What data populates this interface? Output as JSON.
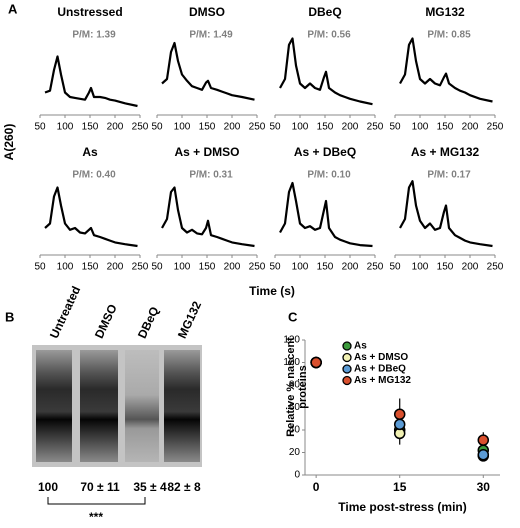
{
  "panel_labels": [
    "A",
    "B",
    "C"
  ],
  "shared_axes": {
    "ylabel": "A(260)",
    "xlabel": "Time (s)"
  },
  "gel": {
    "lanes": [
      "Untreated",
      "DMSO",
      "DBeQ",
      "MG132"
    ],
    "quantities": [
      "100",
      "70 ± 11",
      "35 ± 4",
      "82 ± 8"
    ],
    "significance": "***"
  },
  "chart_data": [
    {
      "type": "line",
      "title": "Unstressed",
      "annotation": "P/M: 1.39",
      "color": "#000000",
      "xlim": [
        50,
        250
      ],
      "xticks": [
        50,
        100,
        150,
        200,
        250
      ],
      "ylim": [
        0,
        1
      ],
      "x": [
        60,
        70,
        78,
        85,
        92,
        100,
        110,
        120,
        130,
        140,
        148,
        152,
        158,
        170,
        180,
        190,
        200,
        220,
        245
      ],
      "values": [
        0.25,
        0.27,
        0.5,
        0.65,
        0.45,
        0.25,
        0.2,
        0.19,
        0.18,
        0.17,
        0.25,
        0.3,
        0.2,
        0.2,
        0.19,
        0.17,
        0.16,
        0.13,
        0.1
      ]
    },
    {
      "type": "line",
      "title": "DMSO",
      "annotation": "P/M: 1.49",
      "color": "#000000",
      "xlim": [
        50,
        250
      ],
      "xticks": [
        50,
        100,
        150,
        200,
        250
      ],
      "ylim": [
        0,
        1
      ],
      "x": [
        60,
        70,
        78,
        85,
        92,
        100,
        110,
        120,
        130,
        140,
        148,
        152,
        158,
        170,
        180,
        190,
        200,
        220,
        245
      ],
      "values": [
        0.35,
        0.4,
        0.7,
        0.8,
        0.6,
        0.45,
        0.38,
        0.32,
        0.3,
        0.28,
        0.36,
        0.38,
        0.3,
        0.28,
        0.26,
        0.24,
        0.22,
        0.2,
        0.17
      ]
    },
    {
      "type": "line",
      "title": "DBeQ",
      "annotation": "P/M: 0.56",
      "color": "#000000",
      "xlim": [
        50,
        250
      ],
      "xticks": [
        50,
        100,
        150,
        200,
        250
      ],
      "ylim": [
        0,
        1
      ],
      "x": [
        60,
        70,
        78,
        85,
        92,
        100,
        110,
        120,
        130,
        140,
        148,
        152,
        158,
        170,
        180,
        190,
        200,
        220,
        245
      ],
      "values": [
        0.3,
        0.4,
        0.78,
        0.85,
        0.55,
        0.35,
        0.3,
        0.35,
        0.3,
        0.28,
        0.42,
        0.48,
        0.3,
        0.25,
        0.22,
        0.2,
        0.18,
        0.15,
        0.12
      ]
    },
    {
      "type": "line",
      "title": "MG132",
      "annotation": "P/M: 0.85",
      "color": "#000000",
      "xlim": [
        50,
        250
      ],
      "xticks": [
        50,
        100,
        150,
        200,
        250
      ],
      "ylim": [
        0,
        1
      ],
      "x": [
        60,
        70,
        78,
        85,
        92,
        100,
        110,
        120,
        130,
        140,
        148,
        152,
        158,
        170,
        180,
        190,
        200,
        220,
        245
      ],
      "values": [
        0.35,
        0.45,
        0.78,
        0.85,
        0.6,
        0.4,
        0.35,
        0.4,
        0.35,
        0.33,
        0.42,
        0.46,
        0.35,
        0.3,
        0.27,
        0.25,
        0.22,
        0.18,
        0.15
      ]
    },
    {
      "type": "line",
      "title": "As",
      "annotation": "P/M: 0.40",
      "color": "#000000",
      "xlim": [
        50,
        250
      ],
      "xticks": [
        50,
        100,
        150,
        200,
        250
      ],
      "ylim": [
        0,
        1
      ],
      "x": [
        60,
        70,
        78,
        85,
        92,
        100,
        110,
        120,
        130,
        140,
        148,
        152,
        158,
        170,
        180,
        190,
        200,
        220,
        245
      ],
      "values": [
        0.3,
        0.35,
        0.65,
        0.75,
        0.55,
        0.35,
        0.28,
        0.3,
        0.25,
        0.24,
        0.28,
        0.3,
        0.22,
        0.2,
        0.18,
        0.16,
        0.14,
        0.12,
        0.1
      ]
    },
    {
      "type": "line",
      "title": "As + DMSO",
      "annotation": "P/M: 0.31",
      "color": "#000000",
      "xlim": [
        50,
        250
      ],
      "xticks": [
        50,
        100,
        150,
        200,
        250
      ],
      "ylim": [
        0,
        1
      ],
      "x": [
        60,
        70,
        78,
        85,
        92,
        100,
        110,
        120,
        130,
        140,
        148,
        152,
        158,
        170,
        180,
        190,
        200,
        220,
        245
      ],
      "values": [
        0.3,
        0.4,
        0.7,
        0.75,
        0.5,
        0.3,
        0.25,
        0.28,
        0.24,
        0.23,
        0.3,
        0.38,
        0.22,
        0.2,
        0.18,
        0.16,
        0.14,
        0.12,
        0.1
      ]
    },
    {
      "type": "line",
      "title": "As + DBeQ",
      "annotation": "P/M: 0.10",
      "color": "#000000",
      "xlim": [
        50,
        250
      ],
      "xticks": [
        50,
        100,
        150,
        200,
        250
      ],
      "ylim": [
        0,
        1
      ],
      "x": [
        60,
        70,
        78,
        85,
        92,
        100,
        110,
        120,
        130,
        140,
        148,
        152,
        158,
        170,
        180,
        190,
        200,
        220,
        245
      ],
      "values": [
        0.25,
        0.35,
        0.7,
        0.8,
        0.6,
        0.35,
        0.3,
        0.32,
        0.28,
        0.3,
        0.5,
        0.6,
        0.3,
        0.2,
        0.17,
        0.15,
        0.13,
        0.11,
        0.1
      ]
    },
    {
      "type": "line",
      "title": "As + MG132",
      "annotation": "P/M: 0.17",
      "color": "#000000",
      "xlim": [
        50,
        250
      ],
      "xticks": [
        50,
        100,
        150,
        200,
        250
      ],
      "ylim": [
        0,
        1
      ],
      "x": [
        60,
        70,
        78,
        85,
        92,
        100,
        110,
        120,
        130,
        140,
        148,
        152,
        158,
        170,
        180,
        190,
        200,
        220,
        245
      ],
      "values": [
        0.3,
        0.4,
        0.75,
        0.82,
        0.55,
        0.38,
        0.3,
        0.35,
        0.28,
        0.3,
        0.48,
        0.55,
        0.3,
        0.22,
        0.19,
        0.16,
        0.14,
        0.12,
        0.1
      ]
    },
    {
      "type": "scatter",
      "ylabel": "Relative % nascent proteins",
      "xlabel": "Time post-stress (min)",
      "xlim": [
        -2,
        33
      ],
      "xticks": [
        0,
        15,
        30
      ],
      "ylim": [
        0,
        120
      ],
      "yticks": [
        0,
        20,
        40,
        60,
        80,
        100,
        120
      ],
      "legend": "upper right",
      "x": [
        0,
        15,
        30
      ],
      "series": [
        {
          "name": "As",
          "color": "#3c9a3c",
          "values": [
            100,
            40,
            22
          ],
          "errors": [
            0,
            8,
            6
          ]
        },
        {
          "name": "As + DMSO",
          "color": "#f2f2b4",
          "values": [
            100,
            37,
            17
          ],
          "errors": [
            0,
            10,
            5
          ]
        },
        {
          "name": "As + DBeQ",
          "color": "#5b9bd5",
          "values": [
            100,
            45,
            18
          ],
          "errors": [
            0,
            12,
            6
          ]
        },
        {
          "name": "As + MG132",
          "color": "#d9502e",
          "values": [
            100,
            54,
            31
          ],
          "errors": [
            0,
            14,
            7
          ]
        }
      ]
    }
  ]
}
